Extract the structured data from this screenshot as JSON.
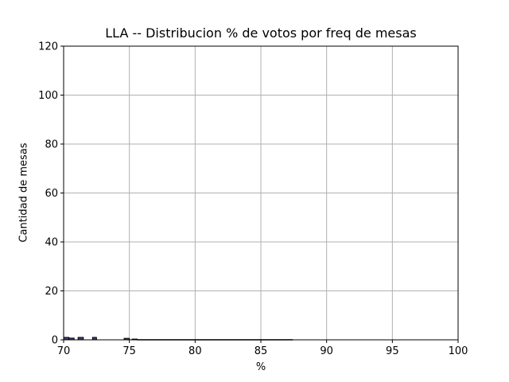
{
  "chart_data": {
    "type": "bar",
    "title": "LLA -- Distribucion % de votos por freq de mesas",
    "xlabel": "%",
    "ylabel": "Cantidad de mesas",
    "xlim": [
      70,
      100
    ],
    "ylim": [
      0,
      120
    ],
    "xticks": [
      70,
      75,
      80,
      85,
      90,
      95,
      100
    ],
    "yticks": [
      0,
      20,
      40,
      60,
      80,
      100,
      120
    ],
    "grid": true,
    "bar_color": "#4b3b7a",
    "bins": [
      {
        "start": 70.0,
        "end": 70.4,
        "count": 1
      },
      {
        "start": 70.4,
        "end": 70.8,
        "count": 0.7
      },
      {
        "start": 71.1,
        "end": 71.5,
        "count": 1
      },
      {
        "start": 72.2,
        "end": 72.5,
        "count": 1
      },
      {
        "start": 74.6,
        "end": 75.0,
        "count": 0.6
      },
      {
        "start": 75.2,
        "end": 75.6,
        "count": 0.3
      },
      {
        "start": 75.6,
        "end": 87.4,
        "count": 0.1
      }
    ]
  }
}
